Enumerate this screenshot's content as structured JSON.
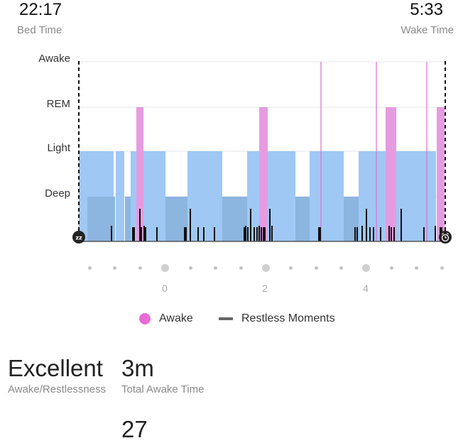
{
  "header": {
    "bed_time": "22:17",
    "bed_label": "Bed Time",
    "wake_time": "5:33",
    "wake_label": "Wake Time"
  },
  "chart_data": {
    "type": "timeline",
    "y_levels": [
      "Awake",
      "REM",
      "Light",
      "Deep"
    ],
    "x_ticks": [
      "0",
      "2",
      "4"
    ],
    "segments_light": [
      [
        111,
        160
      ],
      [
        163,
        175
      ],
      [
        184,
        233
      ],
      [
        264,
        313
      ],
      [
        348,
        416
      ],
      [
        436,
        484
      ],
      [
        505,
        614
      ]
    ],
    "segments_deep_dark": [
      [
        123,
        162
      ],
      [
        176,
        184
      ],
      [
        233,
        264
      ],
      [
        313,
        348
      ],
      [
        416,
        436
      ],
      [
        484,
        505
      ]
    ],
    "awake_blocks": [
      [
        192,
        202
      ],
      [
        365,
        377
      ],
      [
        543,
        558
      ],
      [
        615,
        626
      ]
    ],
    "awake_lines": [
      452,
      530,
      601
    ],
    "restless": [
      157,
      187,
      189,
      197,
      199,
      203,
      205,
      221,
      260,
      262,
      268,
      279,
      287,
      302,
      344,
      346,
      349,
      353,
      358,
      362,
      365,
      368,
      371,
      373,
      380,
      383,
      449,
      451,
      500,
      503,
      510,
      516,
      521,
      526,
      536,
      548,
      551,
      555,
      565,
      597,
      613,
      620,
      622
    ]
  },
  "legend": {
    "awake_label": "Awake",
    "restless_label": "Restless Moments",
    "awake_color": "#e86ad6"
  },
  "stats": {
    "quality_value": "Excellent",
    "quality_label": "Awake/Restlessness",
    "awake_time_value": "3m",
    "awake_time_label": "Total Awake Time",
    "next_value": "27"
  },
  "icons": {
    "start": "sleep-zz-icon",
    "end": "alarm-clock-icon"
  }
}
